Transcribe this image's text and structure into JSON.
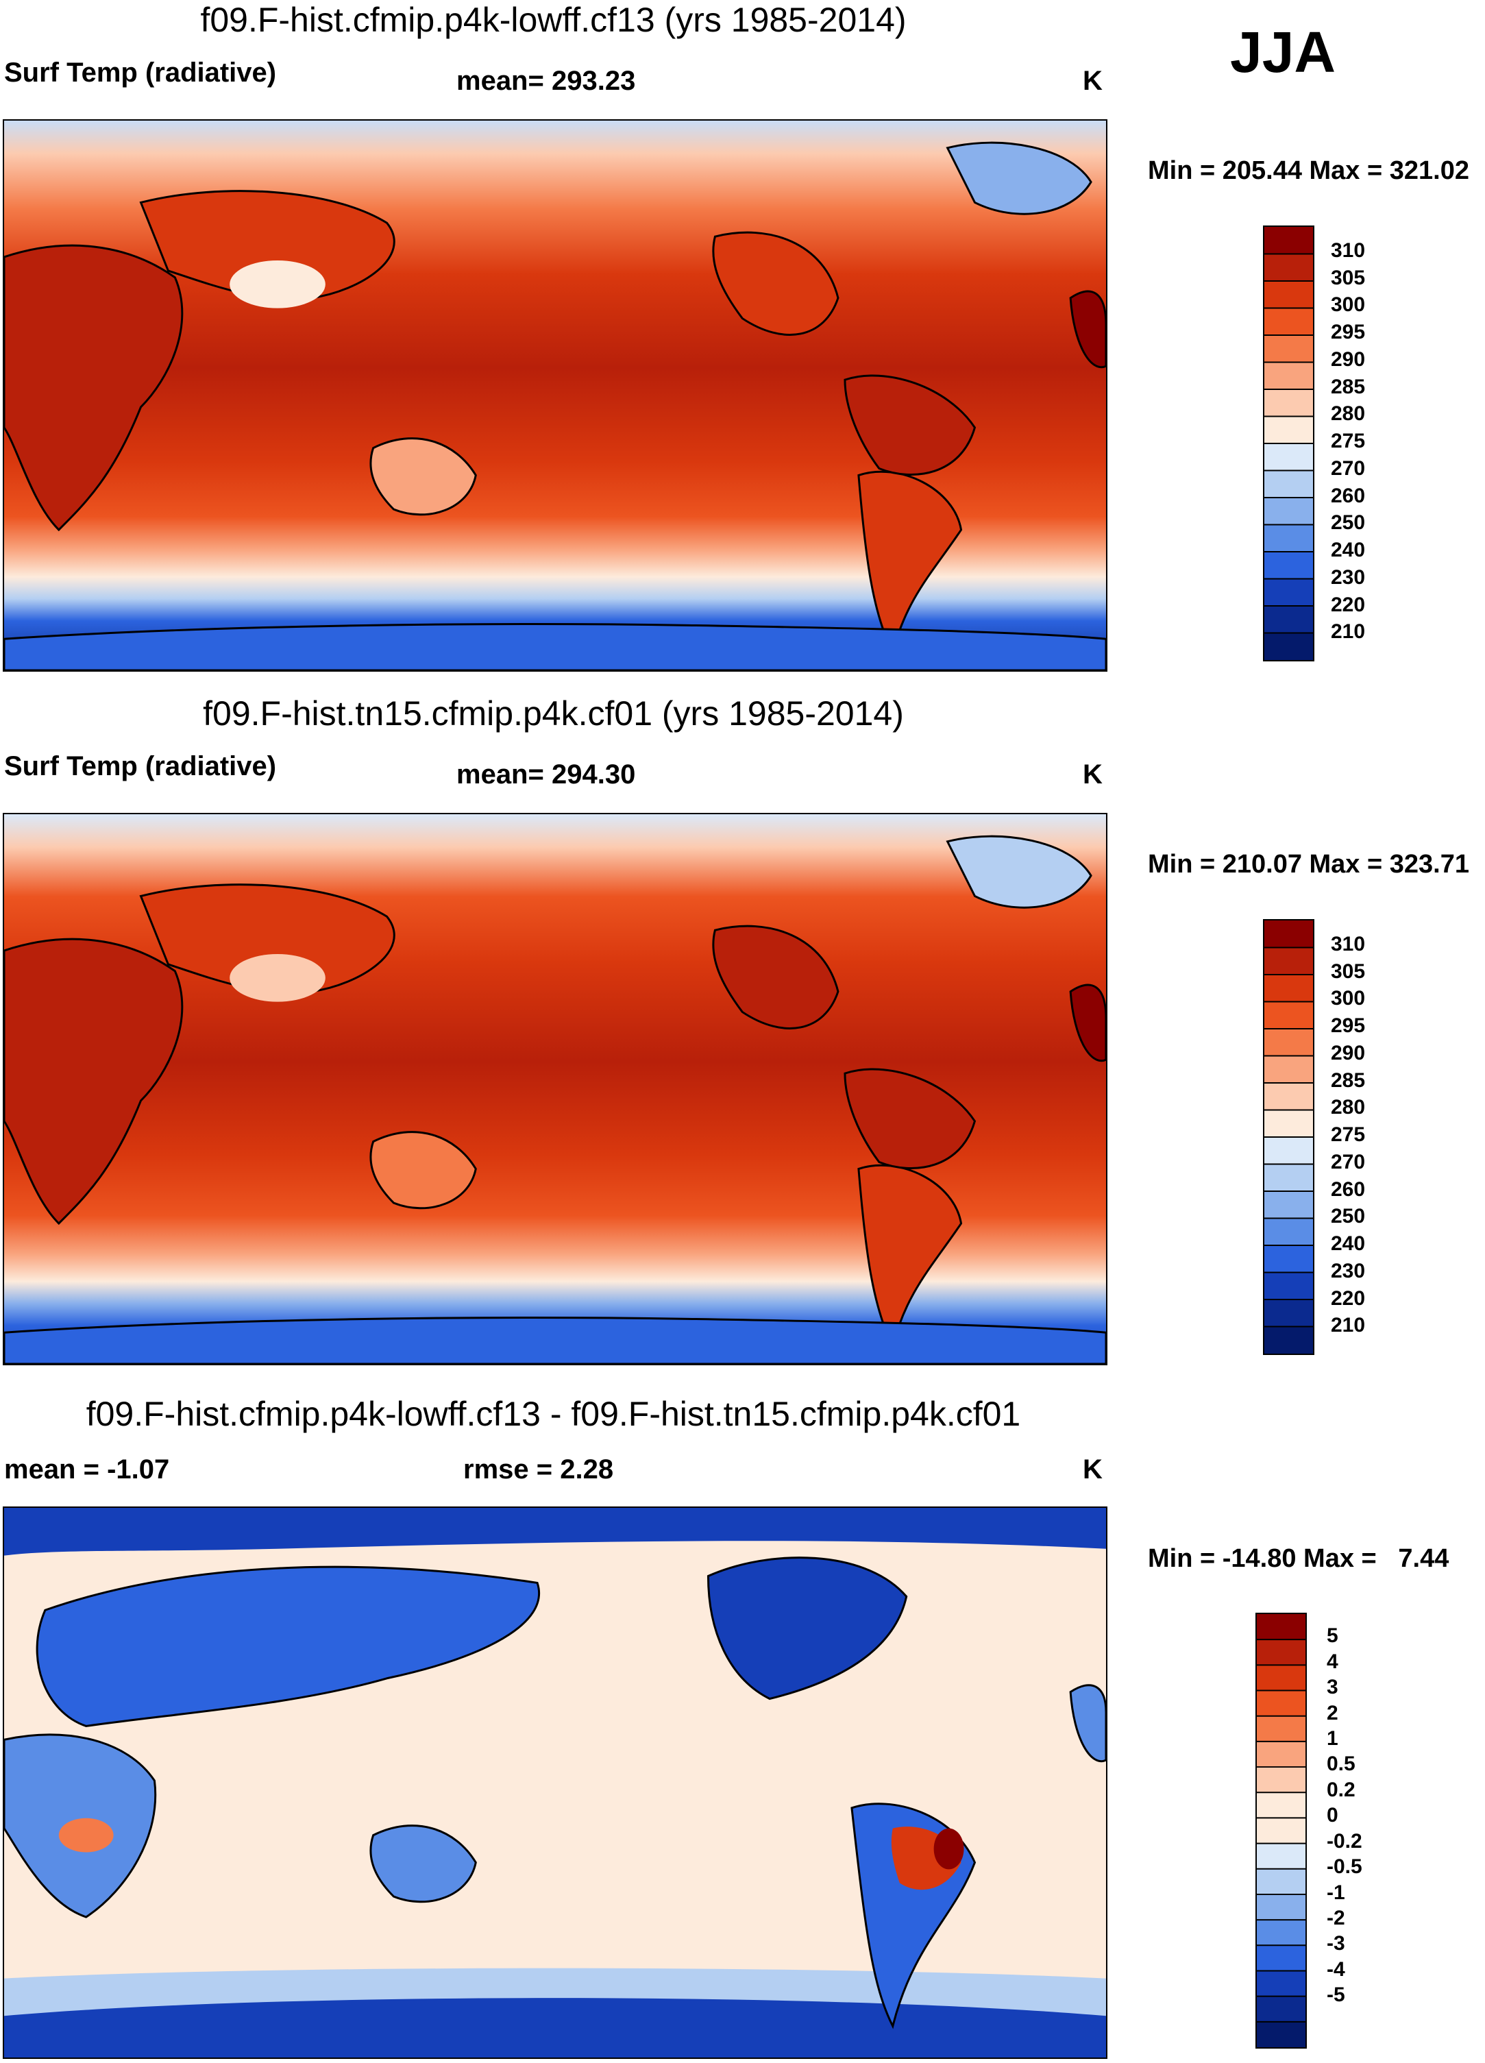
{
  "season": "JJA",
  "chart_data": [
    {
      "type": "heatmap",
      "title": "f09.F-hist.cfmip.p4k-lowff.cf13 (yrs 1985-2014)",
      "variable": "Surf Temp (radiative)",
      "stat_label": "mean= 293.23",
      "units": "K",
      "minmax_label": "Min = 205.44 Max = 321.02",
      "min": 205.44,
      "max": 321.02,
      "mean": 293.23,
      "colorbar_levels": [
        "310",
        "305",
        "300",
        "295",
        "290",
        "285",
        "280",
        "275",
        "270",
        "260",
        "250",
        "240",
        "230",
        "220",
        "210"
      ],
      "colorbar_colors": [
        "#8b0000",
        "#b8200a",
        "#d9380e",
        "#ec5420",
        "#f47a48",
        "#f9a47e",
        "#fccbb0",
        "#fdebdc",
        "#dbe9f9",
        "#b4cff2",
        "#89b0ec",
        "#5a8de6",
        "#2c63de",
        "#153fb8",
        "#0b2a8f",
        "#041a6b"
      ],
      "colorbar_range": [
        205,
        315
      ]
    },
    {
      "type": "heatmap",
      "title": "f09.F-hist.tn15.cfmip.p4k.cf01 (yrs 1985-2014)",
      "variable": "Surf Temp (radiative)",
      "stat_label": "mean= 294.30",
      "units": "K",
      "minmax_label": "Min = 210.07 Max = 323.71",
      "min": 210.07,
      "max": 323.71,
      "mean": 294.3,
      "colorbar_levels": [
        "310",
        "305",
        "300",
        "295",
        "290",
        "285",
        "280",
        "275",
        "270",
        "260",
        "250",
        "240",
        "230",
        "220",
        "210"
      ],
      "colorbar_colors": [
        "#8b0000",
        "#b8200a",
        "#d9380e",
        "#ec5420",
        "#f47a48",
        "#f9a47e",
        "#fccbb0",
        "#fdebdc",
        "#dbe9f9",
        "#b4cff2",
        "#89b0ec",
        "#5a8de6",
        "#2c63de",
        "#153fb8",
        "#0b2a8f",
        "#041a6b"
      ],
      "colorbar_range": [
        205,
        315
      ]
    },
    {
      "type": "heatmap",
      "title": "f09.F-hist.cfmip.p4k-lowff.cf13 - f09.F-hist.tn15.cfmip.p4k.cf01",
      "variable": "mean =  -1.07",
      "stat_label": "rmse =   2.28",
      "units": "K",
      "minmax_label": "Min = -14.80 Max =   7.44",
      "min": -14.8,
      "max": 7.44,
      "mean": -1.07,
      "rmse": 2.28,
      "colorbar_levels": [
        "5",
        "4",
        "3",
        "2",
        "1",
        "0.5",
        "0.2",
        "0",
        "-0.2",
        "-0.5",
        "-1",
        "-2",
        "-3",
        "-4",
        "-5"
      ],
      "colorbar_colors": [
        "#8b0000",
        "#b8200a",
        "#d9380e",
        "#ec5420",
        "#f47a48",
        "#f9a47e",
        "#fccbb0",
        "#fdebdc",
        "#fdebdc",
        "#dbe9f9",
        "#b4cff2",
        "#89b0ec",
        "#5a8de6",
        "#2c63de",
        "#153fb8",
        "#0b2a8f",
        "#041a6b"
      ],
      "colorbar_range": [
        -5,
        5
      ]
    }
  ]
}
